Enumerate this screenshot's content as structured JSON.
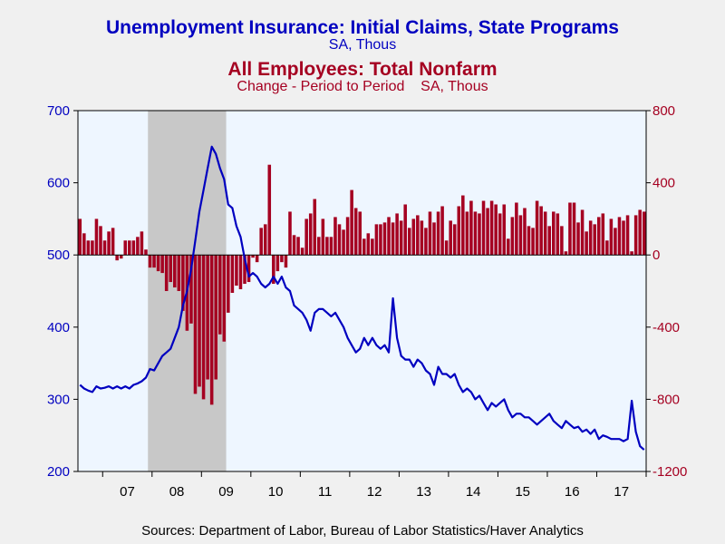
{
  "chart_data": {
    "type": "bar+line",
    "titles": {
      "primary": "Unemployment Insurance: Initial Claims, State Programs",
      "primary_sub": "SA, Thous",
      "secondary": "All Employees: Total Nonfarm",
      "secondary_sub": "Change - Period to Period    SA, Thous"
    },
    "colors": {
      "line": "#0000c0",
      "bars": "#a50021",
      "plot_bg": "#eef6ff",
      "recession": "#c8c8c8"
    },
    "left_axis": {
      "ylim": [
        200,
        700
      ],
      "ticks": [
        200,
        300,
        400,
        500,
        600,
        700
      ],
      "tick_labels": [
        "200",
        "300",
        "400",
        "500",
        "600",
        "700"
      ],
      "color": "#0000c0"
    },
    "right_axis": {
      "ylim": [
        -1200,
        800
      ],
      "ticks": [
        -1200,
        -800,
        -400,
        0,
        400,
        800
      ],
      "tick_labels": [
        "-1200",
        "-800",
        "-400",
        "0",
        "400",
        "800"
      ],
      "color": "#a50021"
    },
    "x_axis": {
      "range": [
        "2006-07",
        "2017-12"
      ],
      "year_labels": [
        "07",
        "08",
        "09",
        "10",
        "11",
        "12",
        "13",
        "14",
        "15",
        "16",
        "17"
      ]
    },
    "recession": {
      "start": "2007-12",
      "end": "2009-06"
    },
    "series": [
      {
        "name": "Unemployment Insurance: Initial Claims, State Programs",
        "axis": "left",
        "type": "line",
        "points": [
          [
            "2006-07",
            320
          ],
          [
            "2006-08",
            315
          ],
          [
            "2006-09",
            312
          ],
          [
            "2006-10",
            310
          ],
          [
            "2006-11",
            318
          ],
          [
            "2006-12",
            315
          ],
          [
            "2007-01",
            316
          ],
          [
            "2007-02",
            318
          ],
          [
            "2007-03",
            315
          ],
          [
            "2007-04",
            318
          ],
          [
            "2007-05",
            315
          ],
          [
            "2007-06",
            318
          ],
          [
            "2007-07",
            315
          ],
          [
            "2007-08",
            320
          ],
          [
            "2007-09",
            322
          ],
          [
            "2007-10",
            325
          ],
          [
            "2007-11",
            330
          ],
          [
            "2007-12",
            342
          ],
          [
            "2008-01",
            340
          ],
          [
            "2008-02",
            350
          ],
          [
            "2008-03",
            360
          ],
          [
            "2008-04",
            365
          ],
          [
            "2008-05",
            370
          ],
          [
            "2008-06",
            385
          ],
          [
            "2008-07",
            400
          ],
          [
            "2008-08",
            430
          ],
          [
            "2008-09",
            450
          ],
          [
            "2008-10",
            480
          ],
          [
            "2008-11",
            520
          ],
          [
            "2008-12",
            560
          ],
          [
            "2009-01",
            590
          ],
          [
            "2009-02",
            620
          ],
          [
            "2009-03",
            650
          ],
          [
            "2009-04",
            640
          ],
          [
            "2009-05",
            620
          ],
          [
            "2009-06",
            605
          ],
          [
            "2009-07",
            570
          ],
          [
            "2009-08",
            565
          ],
          [
            "2009-09",
            540
          ],
          [
            "2009-10",
            525
          ],
          [
            "2009-11",
            495
          ],
          [
            "2009-12",
            470
          ],
          [
            "2010-01",
            475
          ],
          [
            "2010-02",
            470
          ],
          [
            "2010-03",
            460
          ],
          [
            "2010-04",
            455
          ],
          [
            "2010-05",
            460
          ],
          [
            "2010-06",
            470
          ],
          [
            "2010-07",
            460
          ],
          [
            "2010-08",
            470
          ],
          [
            "2010-09",
            455
          ],
          [
            "2010-10",
            450
          ],
          [
            "2010-11",
            430
          ],
          [
            "2010-12",
            425
          ],
          [
            "2011-01",
            420
          ],
          [
            "2011-02",
            410
          ],
          [
            "2011-03",
            395
          ],
          [
            "2011-04",
            420
          ],
          [
            "2011-05",
            425
          ],
          [
            "2011-06",
            425
          ],
          [
            "2011-07",
            420
          ],
          [
            "2011-08",
            415
          ],
          [
            "2011-09",
            420
          ],
          [
            "2011-10",
            410
          ],
          [
            "2011-11",
            400
          ],
          [
            "2011-12",
            385
          ],
          [
            "2012-01",
            375
          ],
          [
            "2012-02",
            365
          ],
          [
            "2012-03",
            370
          ],
          [
            "2012-04",
            385
          ],
          [
            "2012-05",
            375
          ],
          [
            "2012-06",
            385
          ],
          [
            "2012-07",
            375
          ],
          [
            "2012-08",
            370
          ],
          [
            "2012-09",
            375
          ],
          [
            "2012-10",
            365
          ],
          [
            "2012-11",
            440
          ],
          [
            "2012-12",
            385
          ],
          [
            "2013-01",
            360
          ],
          [
            "2013-02",
            355
          ],
          [
            "2013-03",
            355
          ],
          [
            "2013-04",
            345
          ],
          [
            "2013-05",
            355
          ],
          [
            "2013-06",
            350
          ],
          [
            "2013-07",
            340
          ],
          [
            "2013-08",
            335
          ],
          [
            "2013-09",
            320
          ],
          [
            "2013-10",
            345
          ],
          [
            "2013-11",
            335
          ],
          [
            "2013-12",
            335
          ],
          [
            "2014-01",
            330
          ],
          [
            "2014-02",
            335
          ],
          [
            "2014-03",
            320
          ],
          [
            "2014-04",
            310
          ],
          [
            "2014-05",
            315
          ],
          [
            "2014-06",
            310
          ],
          [
            "2014-07",
            300
          ],
          [
            "2014-08",
            305
          ],
          [
            "2014-09",
            295
          ],
          [
            "2014-10",
            285
          ],
          [
            "2014-11",
            295
          ],
          [
            "2014-12",
            290
          ],
          [
            "2015-01",
            295
          ],
          [
            "2015-02",
            300
          ],
          [
            "2015-03",
            285
          ],
          [
            "2015-04",
            275
          ],
          [
            "2015-05",
            280
          ],
          [
            "2015-06",
            280
          ],
          [
            "2015-07",
            275
          ],
          [
            "2015-08",
            275
          ],
          [
            "2015-09",
            270
          ],
          [
            "2015-10",
            265
          ],
          [
            "2015-11",
            270
          ],
          [
            "2015-12",
            275
          ],
          [
            "2016-01",
            280
          ],
          [
            "2016-02",
            270
          ],
          [
            "2016-03",
            265
          ],
          [
            "2016-04",
            260
          ],
          [
            "2016-05",
            270
          ],
          [
            "2016-06",
            265
          ],
          [
            "2016-07",
            260
          ],
          [
            "2016-08",
            262
          ],
          [
            "2016-09",
            255
          ],
          [
            "2016-10",
            258
          ],
          [
            "2016-11",
            252
          ],
          [
            "2016-12",
            258
          ],
          [
            "2017-01",
            245
          ],
          [
            "2017-02",
            250
          ],
          [
            "2017-03",
            248
          ],
          [
            "2017-04",
            245
          ],
          [
            "2017-05",
            245
          ],
          [
            "2017-06",
            245
          ],
          [
            "2017-07",
            242
          ],
          [
            "2017-08",
            245
          ],
          [
            "2017-09",
            298
          ],
          [
            "2017-10",
            255
          ],
          [
            "2017-11",
            235
          ],
          [
            "2017-12",
            230
          ]
        ]
      },
      {
        "name": "All Employees: Total Nonfarm",
        "axis": "right",
        "type": "bar",
        "points": [
          [
            "2006-07",
            200
          ],
          [
            "2006-08",
            120
          ],
          [
            "2006-09",
            80
          ],
          [
            "2006-10",
            80
          ],
          [
            "2006-11",
            200
          ],
          [
            "2006-12",
            160
          ],
          [
            "2007-01",
            80
          ],
          [
            "2007-02",
            130
          ],
          [
            "2007-03",
            150
          ],
          [
            "2007-04",
            -30
          ],
          [
            "2007-05",
            -20
          ],
          [
            "2007-06",
            80
          ],
          [
            "2007-07",
            80
          ],
          [
            "2007-08",
            80
          ],
          [
            "2007-09",
            100
          ],
          [
            "2007-10",
            130
          ],
          [
            "2007-11",
            30
          ],
          [
            "2007-12",
            -70
          ],
          [
            "2008-01",
            -70
          ],
          [
            "2008-02",
            -90
          ],
          [
            "2008-03",
            -100
          ],
          [
            "2008-04",
            -200
          ],
          [
            "2008-05",
            -150
          ],
          [
            "2008-06",
            -180
          ],
          [
            "2008-07",
            -200
          ],
          [
            "2008-08",
            -310
          ],
          [
            "2008-09",
            -420
          ],
          [
            "2008-10",
            -380
          ],
          [
            "2008-11",
            -770
          ],
          [
            "2008-12",
            -730
          ],
          [
            "2009-01",
            -800
          ],
          [
            "2009-02",
            -690
          ],
          [
            "2009-03",
            -830
          ],
          [
            "2009-04",
            -690
          ],
          [
            "2009-05",
            -440
          ],
          [
            "2009-06",
            -480
          ],
          [
            "2009-07",
            -320
          ],
          [
            "2009-08",
            -210
          ],
          [
            "2009-09",
            -170
          ],
          [
            "2009-10",
            -190
          ],
          [
            "2009-11",
            -160
          ],
          [
            "2009-12",
            -150
          ],
          [
            "2010-01",
            -15
          ],
          [
            "2010-02",
            -40
          ],
          [
            "2010-03",
            150
          ],
          [
            "2010-04",
            170
          ],
          [
            "2010-05",
            500
          ],
          [
            "2010-06",
            -160
          ],
          [
            "2010-07",
            -90
          ],
          [
            "2010-08",
            -40
          ],
          [
            "2010-09",
            -70
          ],
          [
            "2010-10",
            240
          ],
          [
            "2010-11",
            110
          ],
          [
            "2010-12",
            100
          ],
          [
            "2011-01",
            40
          ],
          [
            "2011-02",
            200
          ],
          [
            "2011-03",
            230
          ],
          [
            "2011-04",
            310
          ],
          [
            "2011-05",
            100
          ],
          [
            "2011-06",
            200
          ],
          [
            "2011-07",
            100
          ],
          [
            "2011-08",
            100
          ],
          [
            "2011-09",
            210
          ],
          [
            "2011-10",
            170
          ],
          [
            "2011-11",
            140
          ],
          [
            "2011-12",
            210
          ],
          [
            "2012-01",
            360
          ],
          [
            "2012-02",
            260
          ],
          [
            "2012-03",
            240
          ],
          [
            "2012-04",
            90
          ],
          [
            "2012-05",
            120
          ],
          [
            "2012-06",
            90
          ],
          [
            "2012-07",
            170
          ],
          [
            "2012-08",
            170
          ],
          [
            "2012-09",
            180
          ],
          [
            "2012-10",
            210
          ],
          [
            "2012-11",
            180
          ],
          [
            "2012-12",
            230
          ],
          [
            "2013-01",
            190
          ],
          [
            "2013-02",
            280
          ],
          [
            "2013-03",
            150
          ],
          [
            "2013-04",
            200
          ],
          [
            "2013-05",
            220
          ],
          [
            "2013-06",
            190
          ],
          [
            "2013-07",
            150
          ],
          [
            "2013-08",
            240
          ],
          [
            "2013-09",
            180
          ],
          [
            "2013-10",
            240
          ],
          [
            "2013-11",
            270
          ],
          [
            "2013-12",
            80
          ],
          [
            "2014-01",
            190
          ],
          [
            "2014-02",
            170
          ],
          [
            "2014-03",
            270
          ],
          [
            "2014-04",
            330
          ],
          [
            "2014-05",
            240
          ],
          [
            "2014-06",
            300
          ],
          [
            "2014-07",
            240
          ],
          [
            "2014-08",
            230
          ],
          [
            "2014-09",
            300
          ],
          [
            "2014-10",
            260
          ],
          [
            "2014-11",
            300
          ],
          [
            "2014-12",
            280
          ],
          [
            "2015-01",
            230
          ],
          [
            "2015-02",
            280
          ],
          [
            "2015-03",
            90
          ],
          [
            "2015-04",
            210
          ],
          [
            "2015-05",
            290
          ],
          [
            "2015-06",
            220
          ],
          [
            "2015-07",
            260
          ],
          [
            "2015-08",
            160
          ],
          [
            "2015-09",
            150
          ],
          [
            "2015-10",
            300
          ],
          [
            "2015-11",
            270
          ],
          [
            "2015-12",
            240
          ],
          [
            "2016-01",
            160
          ],
          [
            "2016-02",
            240
          ],
          [
            "2016-03",
            230
          ],
          [
            "2016-04",
            160
          ],
          [
            "2016-05",
            20
          ],
          [
            "2016-06",
            290
          ],
          [
            "2016-07",
            290
          ],
          [
            "2016-08",
            180
          ],
          [
            "2016-09",
            250
          ],
          [
            "2016-10",
            130
          ],
          [
            "2016-11",
            190
          ],
          [
            "2016-12",
            170
          ],
          [
            "2017-01",
            210
          ],
          [
            "2017-02",
            230
          ],
          [
            "2017-03",
            80
          ],
          [
            "2017-04",
            200
          ],
          [
            "2017-05",
            150
          ],
          [
            "2017-06",
            210
          ],
          [
            "2017-07",
            190
          ],
          [
            "2017-08",
            220
          ],
          [
            "2017-09",
            20
          ],
          [
            "2017-10",
            220
          ],
          [
            "2017-11",
            250
          ],
          [
            "2017-12",
            240
          ]
        ]
      }
    ]
  },
  "source": "Sources:  Department of Labor, Bureau of Labor Statistics/Haver Analytics"
}
